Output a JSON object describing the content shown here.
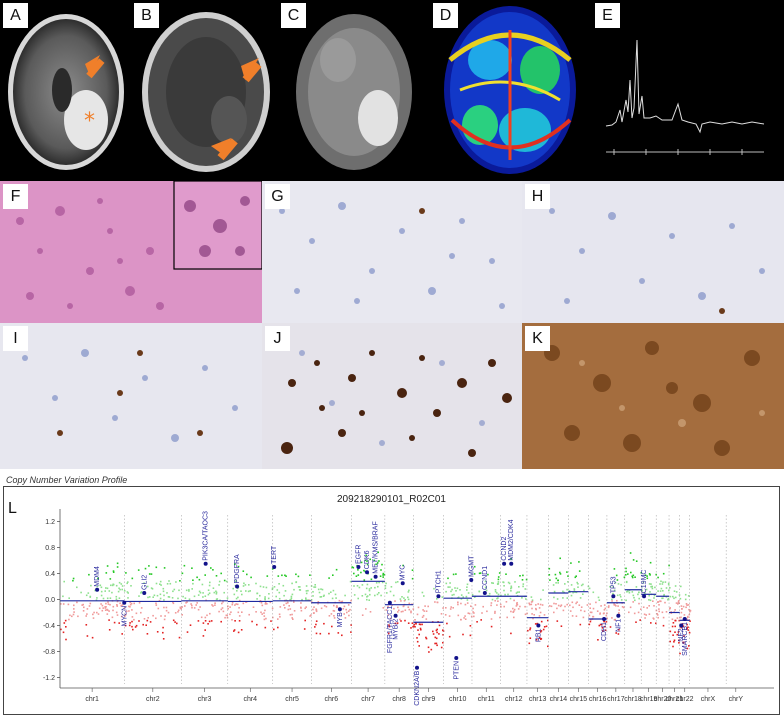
{
  "figure_panels": {
    "A": "A",
    "B": "B",
    "C": "C",
    "D": "D",
    "E": "E",
    "F": "F",
    "G": "G",
    "H": "H",
    "I": "I",
    "J": "J",
    "K": "K"
  },
  "cnv": {
    "caption": "Copy Number Variation Profile",
    "panel_letter": "L",
    "title": "209218290101_R02C01"
  },
  "chart_data": {
    "type": "scatter",
    "title": "209218290101_R02C01",
    "xlabel": "",
    "ylabel": "",
    "ylim": [
      -1.3,
      1.3
    ],
    "yticks": [
      "1.2",
      "0.8",
      "0.4",
      "0.0",
      "-0.4",
      "-0.8",
      "-1.2"
    ],
    "ytick_values": [
      1.2,
      0.8,
      0.4,
      0.0,
      -0.4,
      -0.8,
      -1.2
    ],
    "chromosomes": [
      "chr1",
      "chr2",
      "chr3",
      "chr4",
      "chr5",
      "chr6",
      "chr7",
      "chr8",
      "chr9",
      "chr10",
      "chr11",
      "chr12",
      "chr13",
      "chr14",
      "chr15",
      "chr16",
      "chr17",
      "chr18",
      "chr19",
      "chr20",
      "chr21",
      "chr22",
      "chrX",
      "chrY"
    ],
    "chr_start": [
      0.0,
      0.09,
      0.17,
      0.235,
      0.298,
      0.352,
      0.408,
      0.455,
      0.495,
      0.537,
      0.577,
      0.617,
      0.654,
      0.684,
      0.712,
      0.74,
      0.766,
      0.791,
      0.814,
      0.835,
      0.853,
      0.868,
      0.882,
      0.933
    ],
    "chr_end": [
      0.09,
      0.17,
      0.235,
      0.298,
      0.352,
      0.408,
      0.455,
      0.495,
      0.537,
      0.577,
      0.617,
      0.654,
      0.684,
      0.712,
      0.74,
      0.766,
      0.791,
      0.814,
      0.835,
      0.853,
      0.868,
      0.882,
      0.933,
      0.96
    ],
    "segments": [
      {
        "start": 0.0,
        "end": 0.09,
        "value": -0.02
      },
      {
        "start": 0.09,
        "end": 0.17,
        "value": -0.03
      },
      {
        "start": 0.17,
        "end": 0.235,
        "value": -0.02
      },
      {
        "start": 0.235,
        "end": 0.298,
        "value": -0.03
      },
      {
        "start": 0.298,
        "end": 0.352,
        "value": -0.02
      },
      {
        "start": 0.352,
        "end": 0.408,
        "value": -0.05
      },
      {
        "start": 0.408,
        "end": 0.455,
        "value": 0.28
      },
      {
        "start": 0.455,
        "end": 0.495,
        "value": -0.08
      },
      {
        "start": 0.495,
        "end": 0.537,
        "value": -0.35
      },
      {
        "start": 0.537,
        "end": 0.577,
        "value": 0.02
      },
      {
        "start": 0.577,
        "end": 0.617,
        "value": 0.05
      },
      {
        "start": 0.617,
        "end": 0.654,
        "value": 0.05
      },
      {
        "start": 0.654,
        "end": 0.684,
        "value": -0.28
      },
      {
        "start": 0.684,
        "end": 0.712,
        "value": 0.1
      },
      {
        "start": 0.712,
        "end": 0.74,
        "value": 0.12
      },
      {
        "start": 0.74,
        "end": 0.766,
        "value": -0.3
      },
      {
        "start": 0.766,
        "end": 0.791,
        "value": -0.05
      },
      {
        "start": 0.791,
        "end": 0.814,
        "value": 0.15
      },
      {
        "start": 0.814,
        "end": 0.835,
        "value": 0.08
      },
      {
        "start": 0.835,
        "end": 0.853,
        "value": 0.05
      },
      {
        "start": 0.853,
        "end": 0.868,
        "value": -0.2
      },
      {
        "start": 0.868,
        "end": 0.882,
        "value": -0.32
      }
    ],
    "genes": [
      {
        "name": "MDM4",
        "pos": 0.052,
        "value": 0.15
      },
      {
        "name": "MYCN",
        "pos": 0.09,
        "value": -0.05
      },
      {
        "name": "GLI2",
        "pos": 0.118,
        "value": 0.1
      },
      {
        "name": "PIK3CA/TAOC3",
        "pos": 0.204,
        "value": 0.55
      },
      {
        "name": "PDGFRA",
        "pos": 0.248,
        "value": 0.2
      },
      {
        "name": "TERT",
        "pos": 0.3,
        "value": 0.5
      },
      {
        "name": "MYB",
        "pos": 0.392,
        "value": -0.15
      },
      {
        "name": "EGFR",
        "pos": 0.418,
        "value": 0.5
      },
      {
        "name": "CDK6",
        "pos": 0.43,
        "value": 0.42
      },
      {
        "name": "MET/KMS/BRAF",
        "pos": 0.442,
        "value": 0.35
      },
      {
        "name": "MYC",
        "pos": 0.48,
        "value": 0.25
      },
      {
        "name": "FGFR1/TACC1",
        "pos": 0.462,
        "value": -0.05
      },
      {
        "name": "MYB/2",
        "pos": 0.47,
        "value": -0.25
      },
      {
        "name": "CDKN2A/B",
        "pos": 0.5,
        "value": -1.05
      },
      {
        "name": "PTCH1",
        "pos": 0.53,
        "value": 0.05
      },
      {
        "name": "PTEN",
        "pos": 0.555,
        "value": -0.9
      },
      {
        "name": "MGMT",
        "pos": 0.576,
        "value": 0.3
      },
      {
        "name": "CCND1",
        "pos": 0.595,
        "value": 0.1
      },
      {
        "name": "CCND2",
        "pos": 0.622,
        "value": 0.55
      },
      {
        "name": "MDM2/CDK4",
        "pos": 0.632,
        "value": 0.55
      },
      {
        "name": "RB1",
        "pos": 0.67,
        "value": -0.4
      },
      {
        "name": "TP53",
        "pos": 0.775,
        "value": 0.05
      },
      {
        "name": "NF1",
        "pos": 0.782,
        "value": -0.25
      },
      {
        "name": "CDH1",
        "pos": 0.762,
        "value": -0.3
      },
      {
        "name": "C19MC",
        "pos": 0.818,
        "value": 0.05
      },
      {
        "name": "SMARCB1",
        "pos": 0.875,
        "value": -0.3
      },
      {
        "name": "NF2",
        "pos": 0.87,
        "value": -0.4
      }
    ],
    "grid": false,
    "legend": "none"
  }
}
